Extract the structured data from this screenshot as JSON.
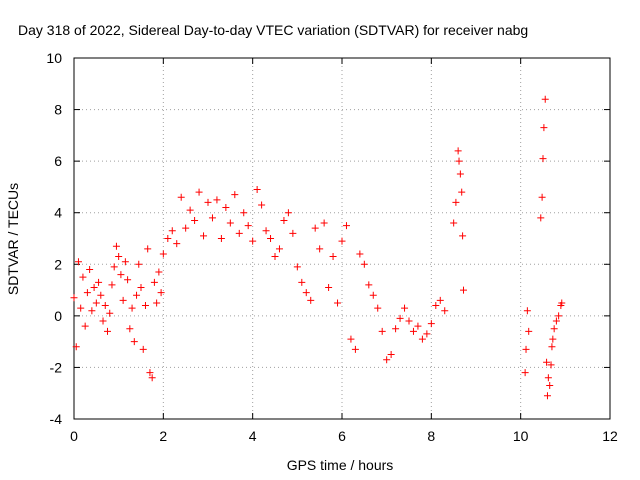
{
  "chart_data": {
    "type": "scatter",
    "title": "Day 318 of 2022, Sidereal Day-to-day VTEC variation (SDTVAR) for receiver nabg",
    "xlabel": "GPS time / hours",
    "ylabel": "SDTVAR / TECUs",
    "xlim": [
      0,
      12
    ],
    "ylim": [
      -4,
      10
    ],
    "xticks": [
      "0",
      "2",
      "4",
      "6",
      "8",
      "10",
      "12"
    ],
    "yticks": [
      "-4",
      "-2",
      "0",
      "2",
      "4",
      "6",
      "8",
      "10"
    ],
    "grid": true,
    "marker": "+",
    "color": "#ff0000",
    "series": [
      {
        "name": "SDTVAR",
        "x": [
          0.0,
          0.05,
          0.1,
          0.15,
          0.2,
          0.25,
          0.3,
          0.35,
          0.4,
          0.45,
          0.5,
          0.55,
          0.6,
          0.65,
          0.7,
          0.75,
          0.8,
          0.85,
          0.9,
          0.95,
          1.0,
          1.05,
          1.1,
          1.15,
          1.2,
          1.25,
          1.3,
          1.35,
          1.4,
          1.45,
          1.5,
          1.55,
          1.6,
          1.65,
          1.7,
          1.75,
          1.8,
          1.85,
          1.9,
          1.95,
          2.0,
          2.1,
          2.2,
          2.3,
          2.4,
          2.5,
          2.6,
          2.7,
          2.8,
          2.9,
          3.0,
          3.1,
          3.2,
          3.3,
          3.4,
          3.5,
          3.6,
          3.7,
          3.8,
          3.9,
          4.0,
          4.1,
          4.2,
          4.3,
          4.4,
          4.5,
          4.6,
          4.7,
          4.8,
          4.9,
          5.0,
          5.1,
          5.2,
          5.3,
          5.4,
          5.5,
          5.6,
          5.7,
          5.8,
          5.9,
          6.0,
          6.1,
          6.2,
          6.3,
          6.4,
          6.5,
          6.6,
          6.7,
          6.8,
          6.9,
          7.0,
          7.1,
          7.2,
          7.3,
          7.4,
          7.5,
          7.6,
          7.7,
          7.8,
          7.9,
          8.0,
          8.1,
          8.2,
          8.3,
          8.5,
          8.55,
          8.6,
          8.62,
          8.65,
          8.68,
          8.7,
          8.72,
          10.1,
          10.12,
          10.15,
          10.18,
          10.45,
          10.48,
          10.5,
          10.52,
          10.55,
          10.58,
          10.6,
          10.62,
          10.65,
          10.68,
          10.7,
          10.72,
          10.75,
          10.8,
          10.85,
          10.9,
          10.92
        ],
        "y": [
          0.7,
          -1.2,
          2.1,
          0.3,
          1.5,
          -0.4,
          0.9,
          1.8,
          0.2,
          1.1,
          0.5,
          1.3,
          0.8,
          -0.2,
          0.4,
          -0.6,
          0.1,
          1.2,
          1.9,
          2.7,
          2.3,
          1.6,
          0.6,
          2.1,
          1.4,
          -0.5,
          0.3,
          -1.0,
          0.8,
          2.0,
          1.1,
          -1.3,
          0.4,
          2.6,
          -2.2,
          -2.4,
          1.3,
          0.5,
          1.7,
          0.9,
          2.4,
          3.0,
          3.3,
          2.8,
          4.6,
          3.4,
          4.1,
          3.7,
          4.8,
          3.1,
          4.4,
          3.8,
          4.5,
          3.0,
          4.2,
          3.6,
          4.7,
          3.2,
          4.0,
          3.5,
          2.9,
          4.9,
          4.3,
          3.3,
          3.0,
          2.3,
          2.6,
          3.7,
          4.0,
          3.2,
          1.9,
          1.3,
          0.9,
          0.6,
          3.4,
          2.6,
          3.6,
          1.1,
          2.3,
          0.5,
          2.9,
          3.5,
          -0.9,
          -1.3,
          2.4,
          2.0,
          1.2,
          0.8,
          0.3,
          -0.6,
          -1.7,
          -1.5,
          -0.5,
          -0.1,
          0.3,
          -0.2,
          -0.6,
          -0.4,
          -0.9,
          -0.7,
          -0.3,
          0.4,
          0.6,
          0.2,
          3.6,
          4.4,
          6.4,
          6.0,
          5.5,
          4.8,
          3.1,
          1.0,
          -2.2,
          -1.3,
          0.2,
          -0.6,
          3.8,
          4.6,
          6.1,
          7.3,
          8.4,
          -1.8,
          -3.1,
          -2.4,
          -2.7,
          -1.9,
          -1.2,
          -0.9,
          -0.5,
          -0.2,
          0.0,
          0.4,
          0.5
        ]
      }
    ]
  }
}
